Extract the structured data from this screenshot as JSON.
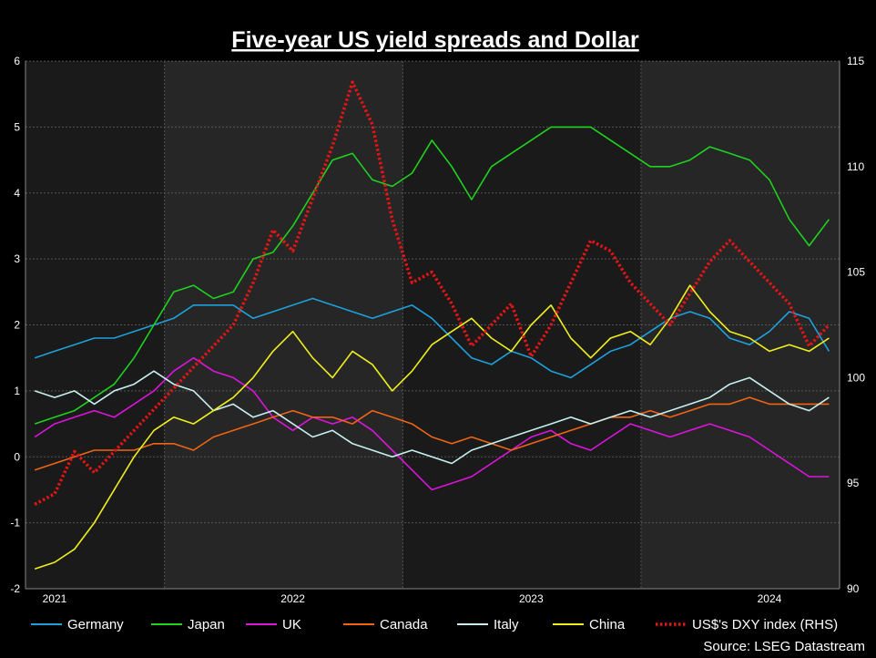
{
  "chart_data": {
    "type": "line",
    "title": "Five-year US yield spreads and Dollar",
    "source": "Source: LSEG Datastream",
    "x_axis": {
      "ticks": [
        "2021",
        "2022",
        "2023",
        "2024"
      ],
      "range": [
        "2020-12-01",
        "2024-05-01"
      ]
    },
    "y_left": {
      "min": -2,
      "max": 6,
      "ticks": [
        "6",
        "5",
        "4",
        "3",
        "2",
        "1",
        "0",
        "-1",
        "-2"
      ]
    },
    "y_right": {
      "min": 90,
      "max": 115,
      "ticks": [
        "115",
        "110",
        "105",
        "100",
        "95",
        "90"
      ]
    },
    "grid": true,
    "legend_position": "bottom",
    "x": [
      "2020-12",
      "2021-01",
      "2021-02",
      "2021-03",
      "2021-04",
      "2021-05",
      "2021-06",
      "2021-07",
      "2021-08",
      "2021-09",
      "2021-10",
      "2021-11",
      "2021-12",
      "2022-01",
      "2022-02",
      "2022-03",
      "2022-04",
      "2022-05",
      "2022-06",
      "2022-07",
      "2022-08",
      "2022-09",
      "2022-10",
      "2022-11",
      "2022-12",
      "2023-01",
      "2023-02",
      "2023-03",
      "2023-04",
      "2023-05",
      "2023-06",
      "2023-07",
      "2023-08",
      "2023-09",
      "2023-10",
      "2023-11",
      "2023-12",
      "2024-01",
      "2024-02",
      "2024-03",
      "2024-04"
    ],
    "series": [
      {
        "name": "Germany",
        "color": "#1ea0dc",
        "axis": "left",
        "style": "solid",
        "values": [
          1.5,
          1.6,
          1.7,
          1.8,
          1.8,
          1.9,
          2.0,
          2.1,
          2.3,
          2.3,
          2.3,
          2.1,
          2.2,
          2.3,
          2.4,
          2.3,
          2.2,
          2.1,
          2.2,
          2.3,
          2.1,
          1.8,
          1.5,
          1.4,
          1.6,
          1.5,
          1.3,
          1.2,
          1.4,
          1.6,
          1.7,
          1.9,
          2.1,
          2.2,
          2.1,
          1.8,
          1.7,
          1.9,
          2.2,
          2.1,
          1.6
        ]
      },
      {
        "name": "Japan",
        "color": "#1ed21e",
        "axis": "left",
        "style": "solid",
        "values": [
          0.5,
          0.6,
          0.7,
          0.9,
          1.1,
          1.5,
          2.0,
          2.5,
          2.6,
          2.4,
          2.5,
          3.0,
          3.1,
          3.5,
          4.0,
          4.5,
          4.6,
          4.2,
          4.1,
          4.3,
          4.8,
          4.4,
          3.9,
          4.4,
          4.6,
          4.8,
          5.0,
          5.0,
          5.0,
          4.8,
          4.6,
          4.4,
          4.4,
          4.5,
          4.7,
          4.6,
          4.5,
          4.2,
          3.6,
          3.2,
          3.6
        ]
      },
      {
        "name": "UK",
        "color": "#dc14dc",
        "axis": "left",
        "style": "solid",
        "values": [
          0.3,
          0.5,
          0.6,
          0.7,
          0.6,
          0.8,
          1.0,
          1.3,
          1.5,
          1.3,
          1.2,
          1.0,
          0.6,
          0.4,
          0.6,
          0.5,
          0.6,
          0.4,
          0.1,
          -0.2,
          -0.5,
          -0.4,
          -0.3,
          -0.1,
          0.1,
          0.3,
          0.4,
          0.2,
          0.1,
          0.3,
          0.5,
          0.4,
          0.3,
          0.4,
          0.5,
          0.4,
          0.3,
          0.1,
          -0.1,
          -0.3,
          -0.3
        ]
      },
      {
        "name": "Canada",
        "color": "#f06414",
        "axis": "left",
        "style": "solid",
        "values": [
          -0.2,
          -0.1,
          0.0,
          0.1,
          0.1,
          0.1,
          0.2,
          0.2,
          0.1,
          0.3,
          0.4,
          0.5,
          0.6,
          0.7,
          0.6,
          0.6,
          0.5,
          0.7,
          0.6,
          0.5,
          0.3,
          0.2,
          0.3,
          0.2,
          0.1,
          0.2,
          0.3,
          0.4,
          0.5,
          0.6,
          0.6,
          0.7,
          0.6,
          0.7,
          0.8,
          0.8,
          0.9,
          0.8,
          0.8,
          0.8,
          0.8
        ]
      },
      {
        "name": "Italy",
        "color": "#c8f0f0",
        "axis": "left",
        "style": "solid",
        "values": [
          1.0,
          0.9,
          1.0,
          0.8,
          1.0,
          1.1,
          1.3,
          1.1,
          1.0,
          0.7,
          0.8,
          0.6,
          0.7,
          0.5,
          0.3,
          0.4,
          0.2,
          0.1,
          0.0,
          0.1,
          0.0,
          -0.1,
          0.1,
          0.2,
          0.3,
          0.4,
          0.5,
          0.6,
          0.5,
          0.6,
          0.7,
          0.6,
          0.7,
          0.8,
          0.9,
          1.1,
          1.2,
          1.0,
          0.8,
          0.7,
          0.9
        ]
      },
      {
        "name": "China",
        "color": "#f0f01e",
        "axis": "left",
        "style": "solid",
        "values": [
          -1.7,
          -1.6,
          -1.4,
          -1.0,
          -0.5,
          0.0,
          0.4,
          0.6,
          0.5,
          0.7,
          0.9,
          1.2,
          1.6,
          1.9,
          1.5,
          1.2,
          1.6,
          1.4,
          1.0,
          1.3,
          1.7,
          1.9,
          2.1,
          1.8,
          1.6,
          2.0,
          2.3,
          1.8,
          1.5,
          1.8,
          1.9,
          1.7,
          2.1,
          2.6,
          2.2,
          1.9,
          1.8,
          1.6,
          1.7,
          1.6,
          1.8
        ]
      },
      {
        "name": "US$'s DXY index (RHS)",
        "color": "#e61414",
        "axis": "right",
        "style": "dotted",
        "values": [
          94.0,
          94.5,
          96.5,
          95.5,
          96.5,
          97.5,
          98.5,
          99.5,
          100.5,
          101.5,
          102.5,
          104.5,
          107.0,
          106.0,
          108.5,
          111.0,
          114.0,
          112.0,
          107.5,
          104.5,
          105.0,
          103.5,
          101.5,
          102.5,
          103.5,
          101.0,
          102.5,
          104.5,
          106.5,
          106.0,
          104.5,
          103.5,
          102.5,
          104.0,
          105.5,
          106.5,
          105.5,
          104.5,
          103.5,
          101.5,
          102.5
        ]
      }
    ]
  }
}
